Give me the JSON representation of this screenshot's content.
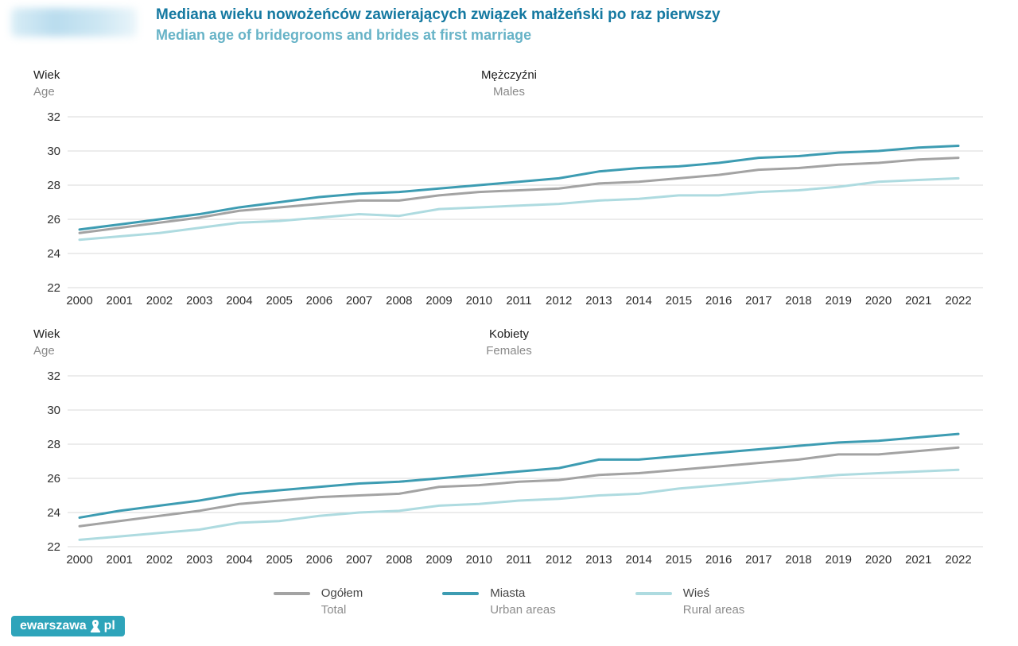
{
  "header": {
    "title_pl": "Mediana wieku nowożeńców zawierających związek małżeński po raz pierwszy",
    "title_en": "Median age of bridegrooms and brides at first marriage"
  },
  "axis": {
    "label_pl": "Wiek",
    "label_en": "Age"
  },
  "legend": [
    {
      "label_pl": "Ogółem",
      "label_en": "Total",
      "color": "#a3a3a3"
    },
    {
      "label_pl": "Miasta",
      "label_en": "Urban areas",
      "color": "#3d9cb2"
    },
    {
      "label_pl": "Wieś",
      "label_en": "Rural areas",
      "color": "#aedbe0"
    }
  ],
  "watermark": {
    "text_left": "ewarszawa",
    "text_right": "pl"
  },
  "colors": {
    "grid": "#d9d9d9",
    "tick_text": "#2e2e2e",
    "title_accent": "#1579a1",
    "subtitle_accent": "#67b3c7",
    "watermark_bg": "#2ea4ba"
  },
  "chart_data": [
    {
      "type": "line",
      "title_pl": "Mężczyźni",
      "title_en": "Males",
      "x": [
        2000,
        2001,
        2002,
        2003,
        2004,
        2005,
        2006,
        2007,
        2008,
        2009,
        2010,
        2011,
        2012,
        2013,
        2014,
        2015,
        2016,
        2017,
        2018,
        2019,
        2020,
        2021,
        2022
      ],
      "ylim": [
        22,
        32
      ],
      "yticks": [
        22,
        24,
        26,
        28,
        30,
        32
      ],
      "grid": true,
      "series": [
        {
          "name_pl": "Ogółem",
          "name_en": "Total",
          "color": "#a3a3a3",
          "values": [
            25.2,
            25.5,
            25.8,
            26.1,
            26.5,
            26.7,
            26.9,
            27.1,
            27.1,
            27.4,
            27.6,
            27.7,
            27.8,
            28.1,
            28.2,
            28.4,
            28.6,
            28.9,
            29.0,
            29.2,
            29.3,
            29.5,
            29.6
          ]
        },
        {
          "name_pl": "Miasta",
          "name_en": "Urban areas",
          "color": "#3d9cb2",
          "values": [
            25.4,
            25.7,
            26.0,
            26.3,
            26.7,
            27.0,
            27.3,
            27.5,
            27.6,
            27.8,
            28.0,
            28.2,
            28.4,
            28.8,
            29.0,
            29.1,
            29.3,
            29.6,
            29.7,
            29.9,
            30.0,
            30.2,
            30.3
          ]
        },
        {
          "name_pl": "Wieś",
          "name_en": "Rural areas",
          "color": "#aedbe0",
          "values": [
            24.8,
            25.0,
            25.2,
            25.5,
            25.8,
            25.9,
            26.1,
            26.3,
            26.2,
            26.6,
            26.7,
            26.8,
            26.9,
            27.1,
            27.2,
            27.4,
            27.4,
            27.6,
            27.7,
            27.9,
            28.2,
            28.3,
            28.4
          ]
        }
      ]
    },
    {
      "type": "line",
      "title_pl": "Kobiety",
      "title_en": "Females",
      "x": [
        2000,
        2001,
        2002,
        2003,
        2004,
        2005,
        2006,
        2007,
        2008,
        2009,
        2010,
        2011,
        2012,
        2013,
        2014,
        2015,
        2016,
        2017,
        2018,
        2019,
        2020,
        2021,
        2022
      ],
      "ylim": [
        22,
        32
      ],
      "yticks": [
        22,
        24,
        26,
        28,
        30,
        32
      ],
      "grid": true,
      "series": [
        {
          "name_pl": "Ogółem",
          "name_en": "Total",
          "color": "#a3a3a3",
          "values": [
            23.2,
            23.5,
            23.8,
            24.1,
            24.5,
            24.7,
            24.9,
            25.0,
            25.1,
            25.5,
            25.6,
            25.8,
            25.9,
            26.2,
            26.3,
            26.5,
            26.7,
            26.9,
            27.1,
            27.4,
            27.4,
            27.6,
            27.8
          ]
        },
        {
          "name_pl": "Miasta",
          "name_en": "Urban areas",
          "color": "#3d9cb2",
          "values": [
            23.7,
            24.1,
            24.4,
            24.7,
            25.1,
            25.3,
            25.5,
            25.7,
            25.8,
            26.0,
            26.2,
            26.4,
            26.6,
            27.1,
            27.1,
            27.3,
            27.5,
            27.7,
            27.9,
            28.1,
            28.2,
            28.4,
            28.6
          ]
        },
        {
          "name_pl": "Wieś",
          "name_en": "Rural areas",
          "color": "#aedbe0",
          "values": [
            22.4,
            22.6,
            22.8,
            23.0,
            23.4,
            23.5,
            23.8,
            24.0,
            24.1,
            24.4,
            24.5,
            24.7,
            24.8,
            25.0,
            25.1,
            25.4,
            25.6,
            25.8,
            26.0,
            26.2,
            26.3,
            26.4,
            26.5
          ]
        }
      ]
    }
  ]
}
